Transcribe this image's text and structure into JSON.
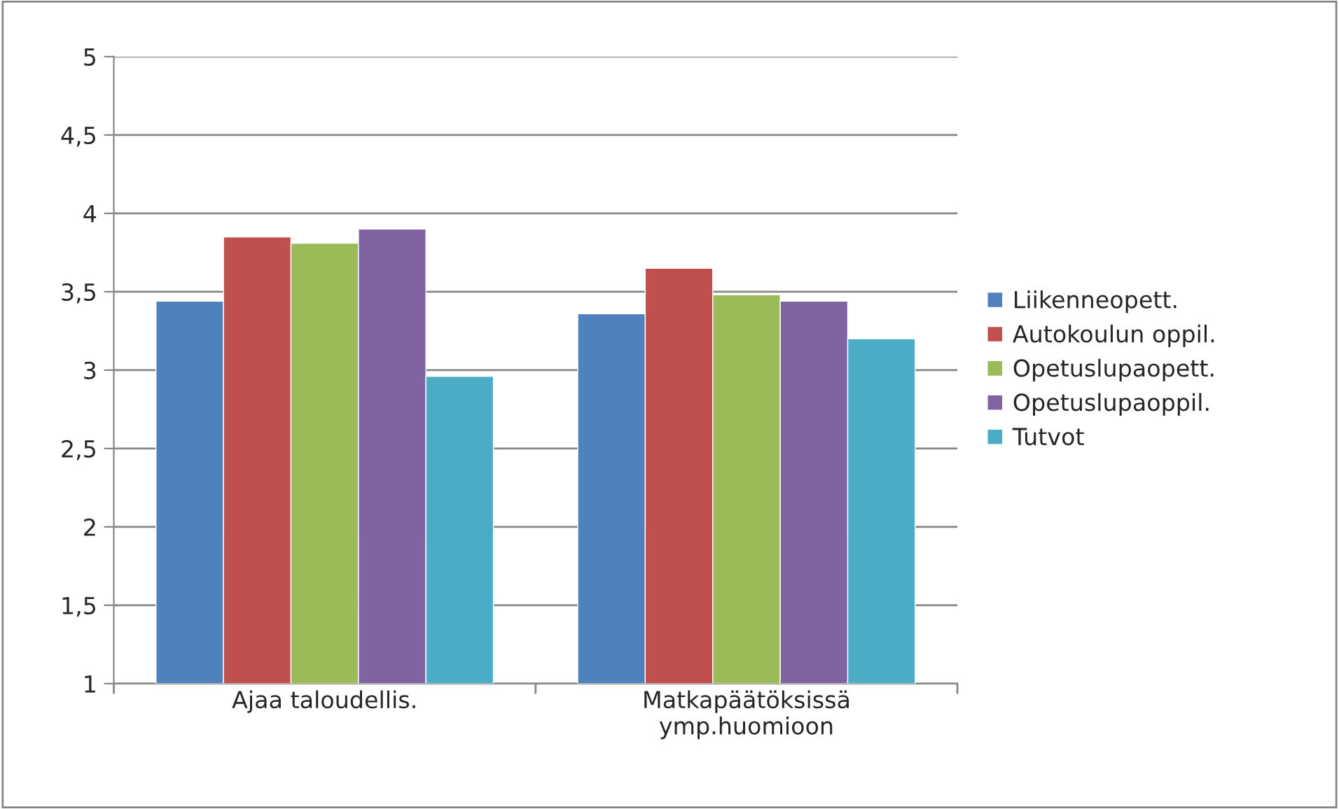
{
  "chart_data": {
    "type": "bar",
    "categories": [
      "Ajaa taloudellis.",
      "Matkapäätöksissä\nymp.huomioon"
    ],
    "series": [
      {
        "name": "Liikenneopett.",
        "color": "#4f81bd",
        "values": [
          3.44,
          3.36
        ]
      },
      {
        "name": "Autokoulun oppil.",
        "color": "#c0504d",
        "values": [
          3.85,
          3.65
        ]
      },
      {
        "name": "Opetuslupaopett.",
        "color": "#9bbb59",
        "values": [
          3.81,
          3.48
        ]
      },
      {
        "name": "Opetuslupaoppil.",
        "color": "#8064a2",
        "values": [
          3.9,
          3.44
        ]
      },
      {
        "name": "Tutvot",
        "color": "#4bacc6",
        "values": [
          2.96,
          3.2
        ]
      }
    ],
    "ylim": [
      1,
      5
    ],
    "yticks": [
      1,
      {
        "value": 1.5,
        "label": "1,5"
      },
      2,
      {
        "value": 2.5,
        "label": "2,5"
      },
      3,
      {
        "value": 3.5,
        "label": "3,5"
      },
      4,
      {
        "value": 4.5,
        "label": "4,5"
      },
      5
    ],
    "grid": "y",
    "legend": "right"
  }
}
